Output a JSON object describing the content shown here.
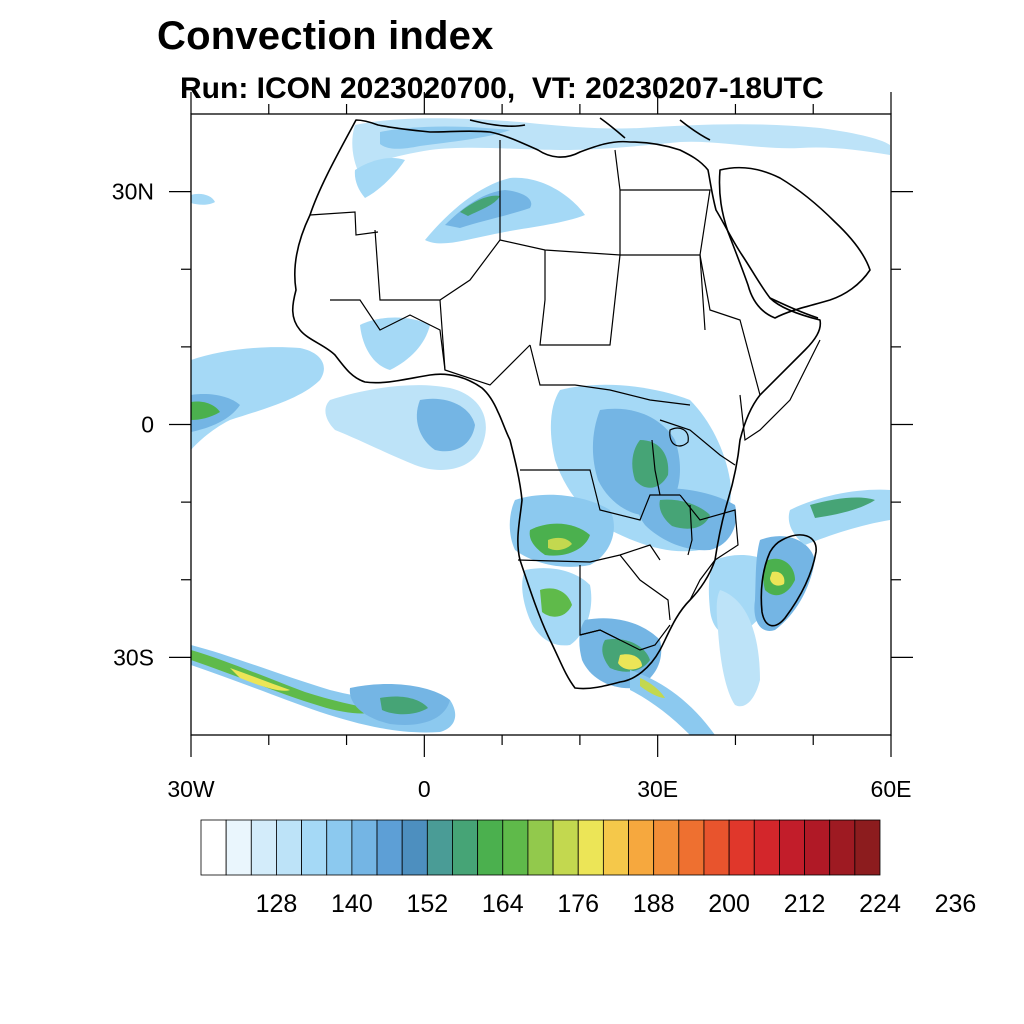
{
  "title": "Convection index",
  "subtitle": "Run: ICON 2023020700,  VT: 20230207-18UTC",
  "map": {
    "lon_range": [
      -30,
      60
    ],
    "lat_range": [
      -40,
      40
    ],
    "lat_ticks": [
      {
        "label": "30N",
        "value": 30
      },
      {
        "label": "0",
        "value": 0
      },
      {
        "label": "30S",
        "value": -30
      }
    ],
    "lon_ticks": [
      {
        "label": "30W",
        "value": -30
      },
      {
        "label": "0",
        "value": 0
      },
      {
        "label": "30E",
        "value": 30
      },
      {
        "label": "60E",
        "value": 60
      }
    ]
  },
  "colorbar": {
    "labels": [
      "128",
      "140",
      "152",
      "164",
      "176",
      "188",
      "200",
      "212",
      "224",
      "236"
    ],
    "colors": [
      "#ffffff",
      "#eaf6fd",
      "#d3ecfa",
      "#bde3f8",
      "#a5d9f6",
      "#8cc9ef",
      "#74b5e4",
      "#5d9fd6",
      "#4d8fbf",
      "#4a9c96",
      "#46a476",
      "#4bb04e",
      "#5fba4a",
      "#92c94c",
      "#c3d84f",
      "#ece557",
      "#f5c84a",
      "#f6a83e",
      "#f28e37",
      "#ee7030",
      "#e8542d",
      "#e0372b",
      "#d3262b",
      "#c21d2a",
      "#b01926",
      "#9e1a22",
      "#8c1c1e"
    ]
  }
}
